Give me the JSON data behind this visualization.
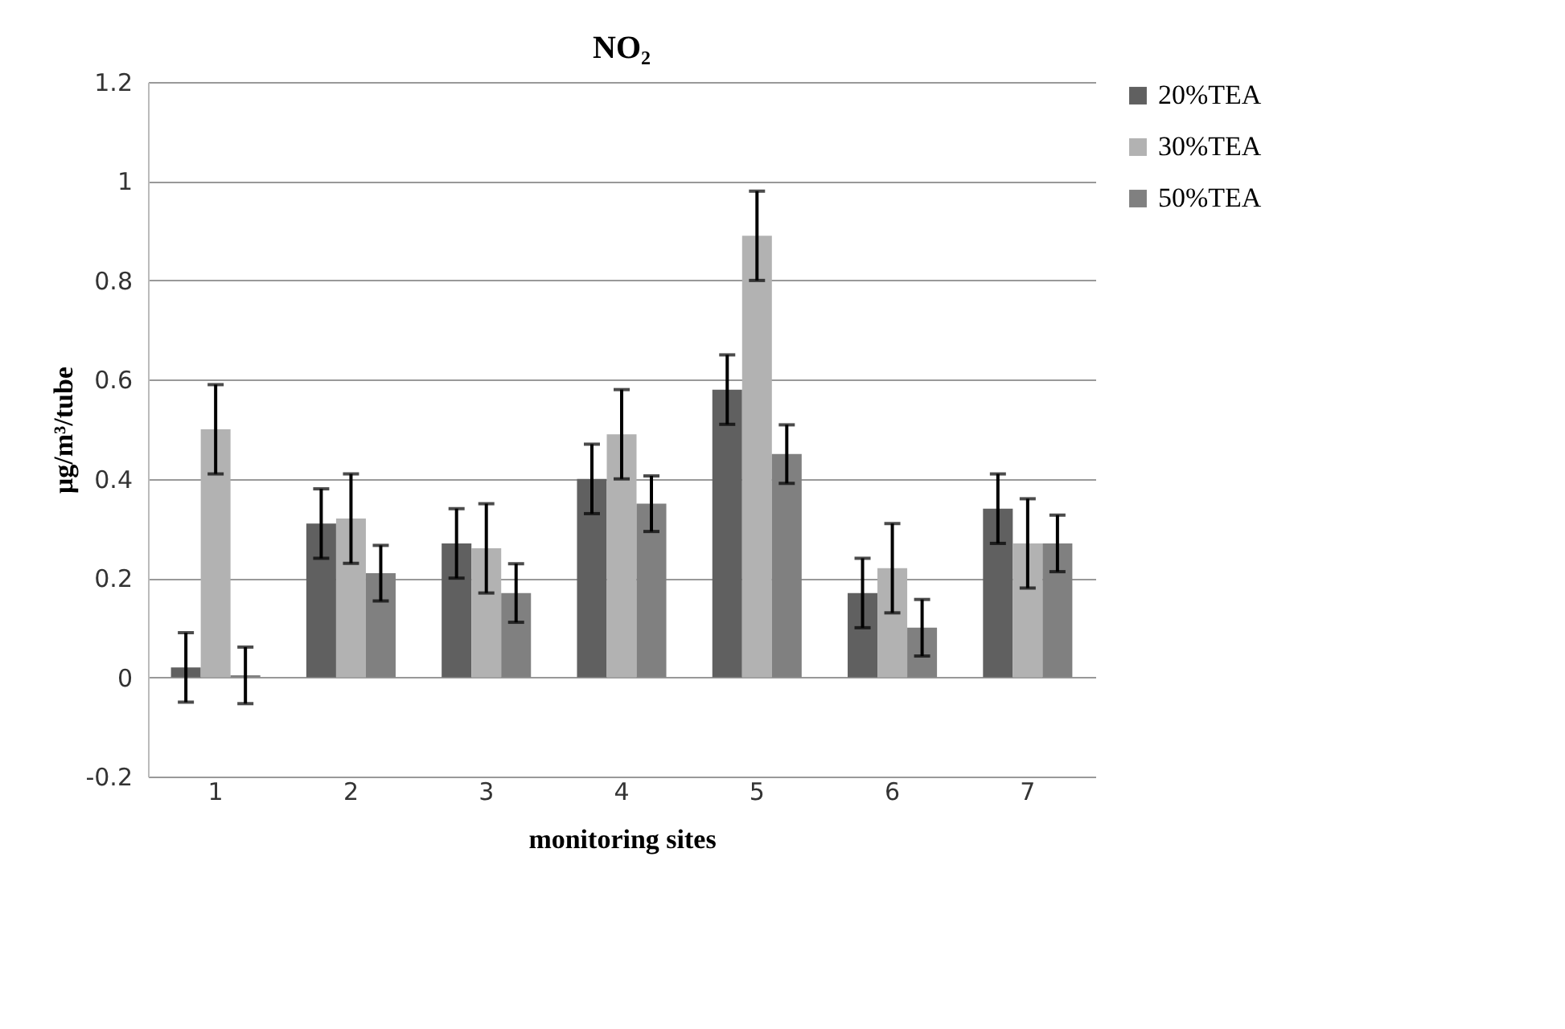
{
  "chart_data": {
    "type": "bar",
    "title": "NO₂",
    "xlabel": "monitoring sites",
    "ylabel": "μg/m³/tube",
    "categories": [
      "1",
      "2",
      "3",
      "4",
      "5",
      "6",
      "7"
    ],
    "series": [
      {
        "name": "20%TEA",
        "color": "#606060",
        "values": [
          0.02,
          0.31,
          0.27,
          0.4,
          0.58,
          0.17,
          0.34
        ],
        "errors": [
          0.07,
          0.07,
          0.07,
          0.07,
          0.07,
          0.07,
          0.07
        ]
      },
      {
        "name": "30%TEA",
        "color": "#b2b2b2",
        "values": [
          0.5,
          0.32,
          0.26,
          0.49,
          0.89,
          0.22,
          0.27
        ],
        "errors": [
          0.09,
          0.09,
          0.09,
          0.09,
          0.09,
          0.09,
          0.09
        ]
      },
      {
        "name": "50%TEA",
        "color": "#808080",
        "values": [
          0.004,
          0.21,
          0.17,
          0.35,
          0.45,
          0.1,
          0.27
        ],
        "errors": [
          0.057,
          0.056,
          0.059,
          0.056,
          0.059,
          0.057,
          0.057
        ]
      }
    ],
    "ylim": [
      -0.2,
      1.2
    ],
    "yticks": [
      -0.2,
      0,
      0.2,
      0.4,
      0.6,
      0.8,
      1,
      1.2
    ],
    "grid": "y",
    "legend": "right"
  }
}
